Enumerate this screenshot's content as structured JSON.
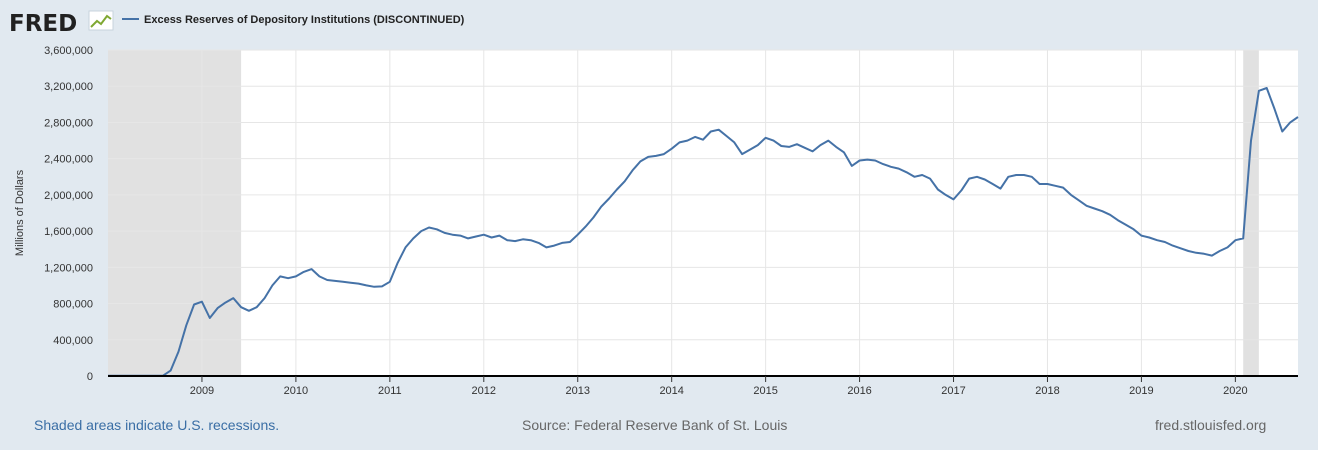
{
  "header": {
    "logo_text": "FRED",
    "legend_label": "Excess Reserves of Depository Institutions (DISCONTINUED)"
  },
  "colors": {
    "background": "#e1e9f0",
    "plot_background": "#ffffff",
    "series": "#4572a7",
    "recession": "#e1e1e1",
    "gridline": "#e6e6e6",
    "logo": "#212121",
    "link": "#3a6ea5"
  },
  "icons": {
    "logo_graph": "line-chart-icon"
  },
  "footer": {
    "recession_note": "Shaded areas indicate U.S. recessions.",
    "source": "Source: Federal Reserve Bank of St. Louis",
    "site": "fred.stlouisfed.org"
  },
  "chart_data": {
    "type": "line",
    "title": "",
    "xlabel": "",
    "ylabel": "Millions of Dollars",
    "xlim": [
      "2008-01",
      "2020-09"
    ],
    "ylim": [
      0,
      3600000
    ],
    "grid": true,
    "legend_position": "top-left",
    "y_ticks": [
      {
        "value": 0,
        "label": "0"
      },
      {
        "value": 400000,
        "label": "400,000"
      },
      {
        "value": 800000,
        "label": "800,000"
      },
      {
        "value": 1200000,
        "label": "1,200,000"
      },
      {
        "value": 1600000,
        "label": "1,600,000"
      },
      {
        "value": 2000000,
        "label": "2,000,000"
      },
      {
        "value": 2400000,
        "label": "2,400,000"
      },
      {
        "value": 2800000,
        "label": "2,800,000"
      },
      {
        "value": 3200000,
        "label": "3,200,000"
      },
      {
        "value": 3600000,
        "label": "3,600,000"
      }
    ],
    "x_ticks": [
      {
        "value": "2009-01",
        "label": "2009"
      },
      {
        "value": "2010-01",
        "label": "2010"
      },
      {
        "value": "2011-01",
        "label": "2011"
      },
      {
        "value": "2012-01",
        "label": "2012"
      },
      {
        "value": "2013-01",
        "label": "2013"
      },
      {
        "value": "2014-01",
        "label": "2014"
      },
      {
        "value": "2015-01",
        "label": "2015"
      },
      {
        "value": "2016-01",
        "label": "2016"
      },
      {
        "value": "2017-01",
        "label": "2017"
      },
      {
        "value": "2018-01",
        "label": "2018"
      },
      {
        "value": "2019-01",
        "label": "2019"
      },
      {
        "value": "2020-01",
        "label": "2020"
      }
    ],
    "recessions": [
      {
        "start": "2008-01",
        "end": "2009-06"
      },
      {
        "start": "2020-02",
        "end": "2020-04"
      }
    ],
    "series": [
      {
        "name": "Excess Reserves of Depository Institutions (DISCONTINUED)",
        "x": [
          "2008-01",
          "2008-06",
          "2008-08",
          "2008-09",
          "2008-10",
          "2008-11",
          "2008-12",
          "2009-01",
          "2009-02",
          "2009-03",
          "2009-04",
          "2009-05",
          "2009-06",
          "2009-07",
          "2009-08",
          "2009-09",
          "2009-10",
          "2009-11",
          "2009-12",
          "2010-01",
          "2010-02",
          "2010-03",
          "2010-04",
          "2010-05",
          "2010-06",
          "2010-07",
          "2010-08",
          "2010-09",
          "2010-10",
          "2010-11",
          "2010-12",
          "2011-01",
          "2011-02",
          "2011-03",
          "2011-04",
          "2011-05",
          "2011-06",
          "2011-07",
          "2011-08",
          "2011-09",
          "2011-10",
          "2011-11",
          "2011-12",
          "2012-01",
          "2012-02",
          "2012-03",
          "2012-04",
          "2012-05",
          "2012-06",
          "2012-07",
          "2012-08",
          "2012-09",
          "2012-10",
          "2012-11",
          "2012-12",
          "2013-01",
          "2013-02",
          "2013-03",
          "2013-04",
          "2013-05",
          "2013-06",
          "2013-07",
          "2013-08",
          "2013-09",
          "2013-10",
          "2013-11",
          "2013-12",
          "2014-01",
          "2014-02",
          "2014-03",
          "2014-04",
          "2014-05",
          "2014-06",
          "2014-07",
          "2014-08",
          "2014-09",
          "2014-10",
          "2014-11",
          "2014-12",
          "2015-01",
          "2015-02",
          "2015-03",
          "2015-04",
          "2015-05",
          "2015-06",
          "2015-07",
          "2015-08",
          "2015-09",
          "2015-10",
          "2015-11",
          "2015-12",
          "2016-01",
          "2016-02",
          "2016-03",
          "2016-04",
          "2016-05",
          "2016-06",
          "2016-07",
          "2016-08",
          "2016-09",
          "2016-10",
          "2016-11",
          "2016-12",
          "2017-01",
          "2017-02",
          "2017-03",
          "2017-04",
          "2017-05",
          "2017-06",
          "2017-07",
          "2017-08",
          "2017-09",
          "2017-10",
          "2017-11",
          "2017-12",
          "2018-01",
          "2018-02",
          "2018-03",
          "2018-04",
          "2018-05",
          "2018-06",
          "2018-07",
          "2018-08",
          "2018-09",
          "2018-10",
          "2018-11",
          "2018-12",
          "2019-01",
          "2019-02",
          "2019-03",
          "2019-04",
          "2019-05",
          "2019-06",
          "2019-07",
          "2019-08",
          "2019-09",
          "2019-10",
          "2019-11",
          "2019-12",
          "2020-01",
          "2020-02",
          "2020-03",
          "2020-04",
          "2020-05",
          "2020-06",
          "2020-07",
          "2020-08",
          "2020-09"
        ],
        "values": [
          2000,
          2000,
          2000,
          60000,
          270000,
          560000,
          790000,
          820000,
          640000,
          750000,
          810000,
          860000,
          760000,
          720000,
          760000,
          860000,
          1000000,
          1100000,
          1080000,
          1100000,
          1150000,
          1180000,
          1100000,
          1060000,
          1050000,
          1040000,
          1030000,
          1020000,
          1000000,
          985000,
          990000,
          1040000,
          1250000,
          1420000,
          1520000,
          1600000,
          1640000,
          1620000,
          1580000,
          1560000,
          1550000,
          1520000,
          1540000,
          1560000,
          1530000,
          1550000,
          1500000,
          1490000,
          1510000,
          1500000,
          1470000,
          1420000,
          1440000,
          1470000,
          1480000,
          1560000,
          1650000,
          1750000,
          1870000,
          1960000,
          2060000,
          2150000,
          2270000,
          2370000,
          2420000,
          2430000,
          2450000,
          2510000,
          2580000,
          2600000,
          2640000,
          2610000,
          2700000,
          2720000,
          2650000,
          2580000,
          2450000,
          2500000,
          2550000,
          2630000,
          2600000,
          2540000,
          2530000,
          2560000,
          2520000,
          2480000,
          2550000,
          2600000,
          2530000,
          2470000,
          2320000,
          2380000,
          2390000,
          2380000,
          2340000,
          2310000,
          2290000,
          2250000,
          2200000,
          2220000,
          2180000,
          2060000,
          2000000,
          1950000,
          2050000,
          2180000,
          2200000,
          2170000,
          2120000,
          2070000,
          2200000,
          2220000,
          2220000,
          2200000,
          2120000,
          2120000,
          2100000,
          2080000,
          2000000,
          1940000,
          1880000,
          1850000,
          1820000,
          1780000,
          1720000,
          1670000,
          1620000,
          1550000,
          1530000,
          1500000,
          1480000,
          1440000,
          1410000,
          1380000,
          1360000,
          1350000,
          1330000,
          1380000,
          1420000,
          1500000,
          1520000,
          2600000,
          3150000,
          3180000,
          2950000,
          2700000,
          2800000,
          2860000
        ]
      }
    ]
  }
}
